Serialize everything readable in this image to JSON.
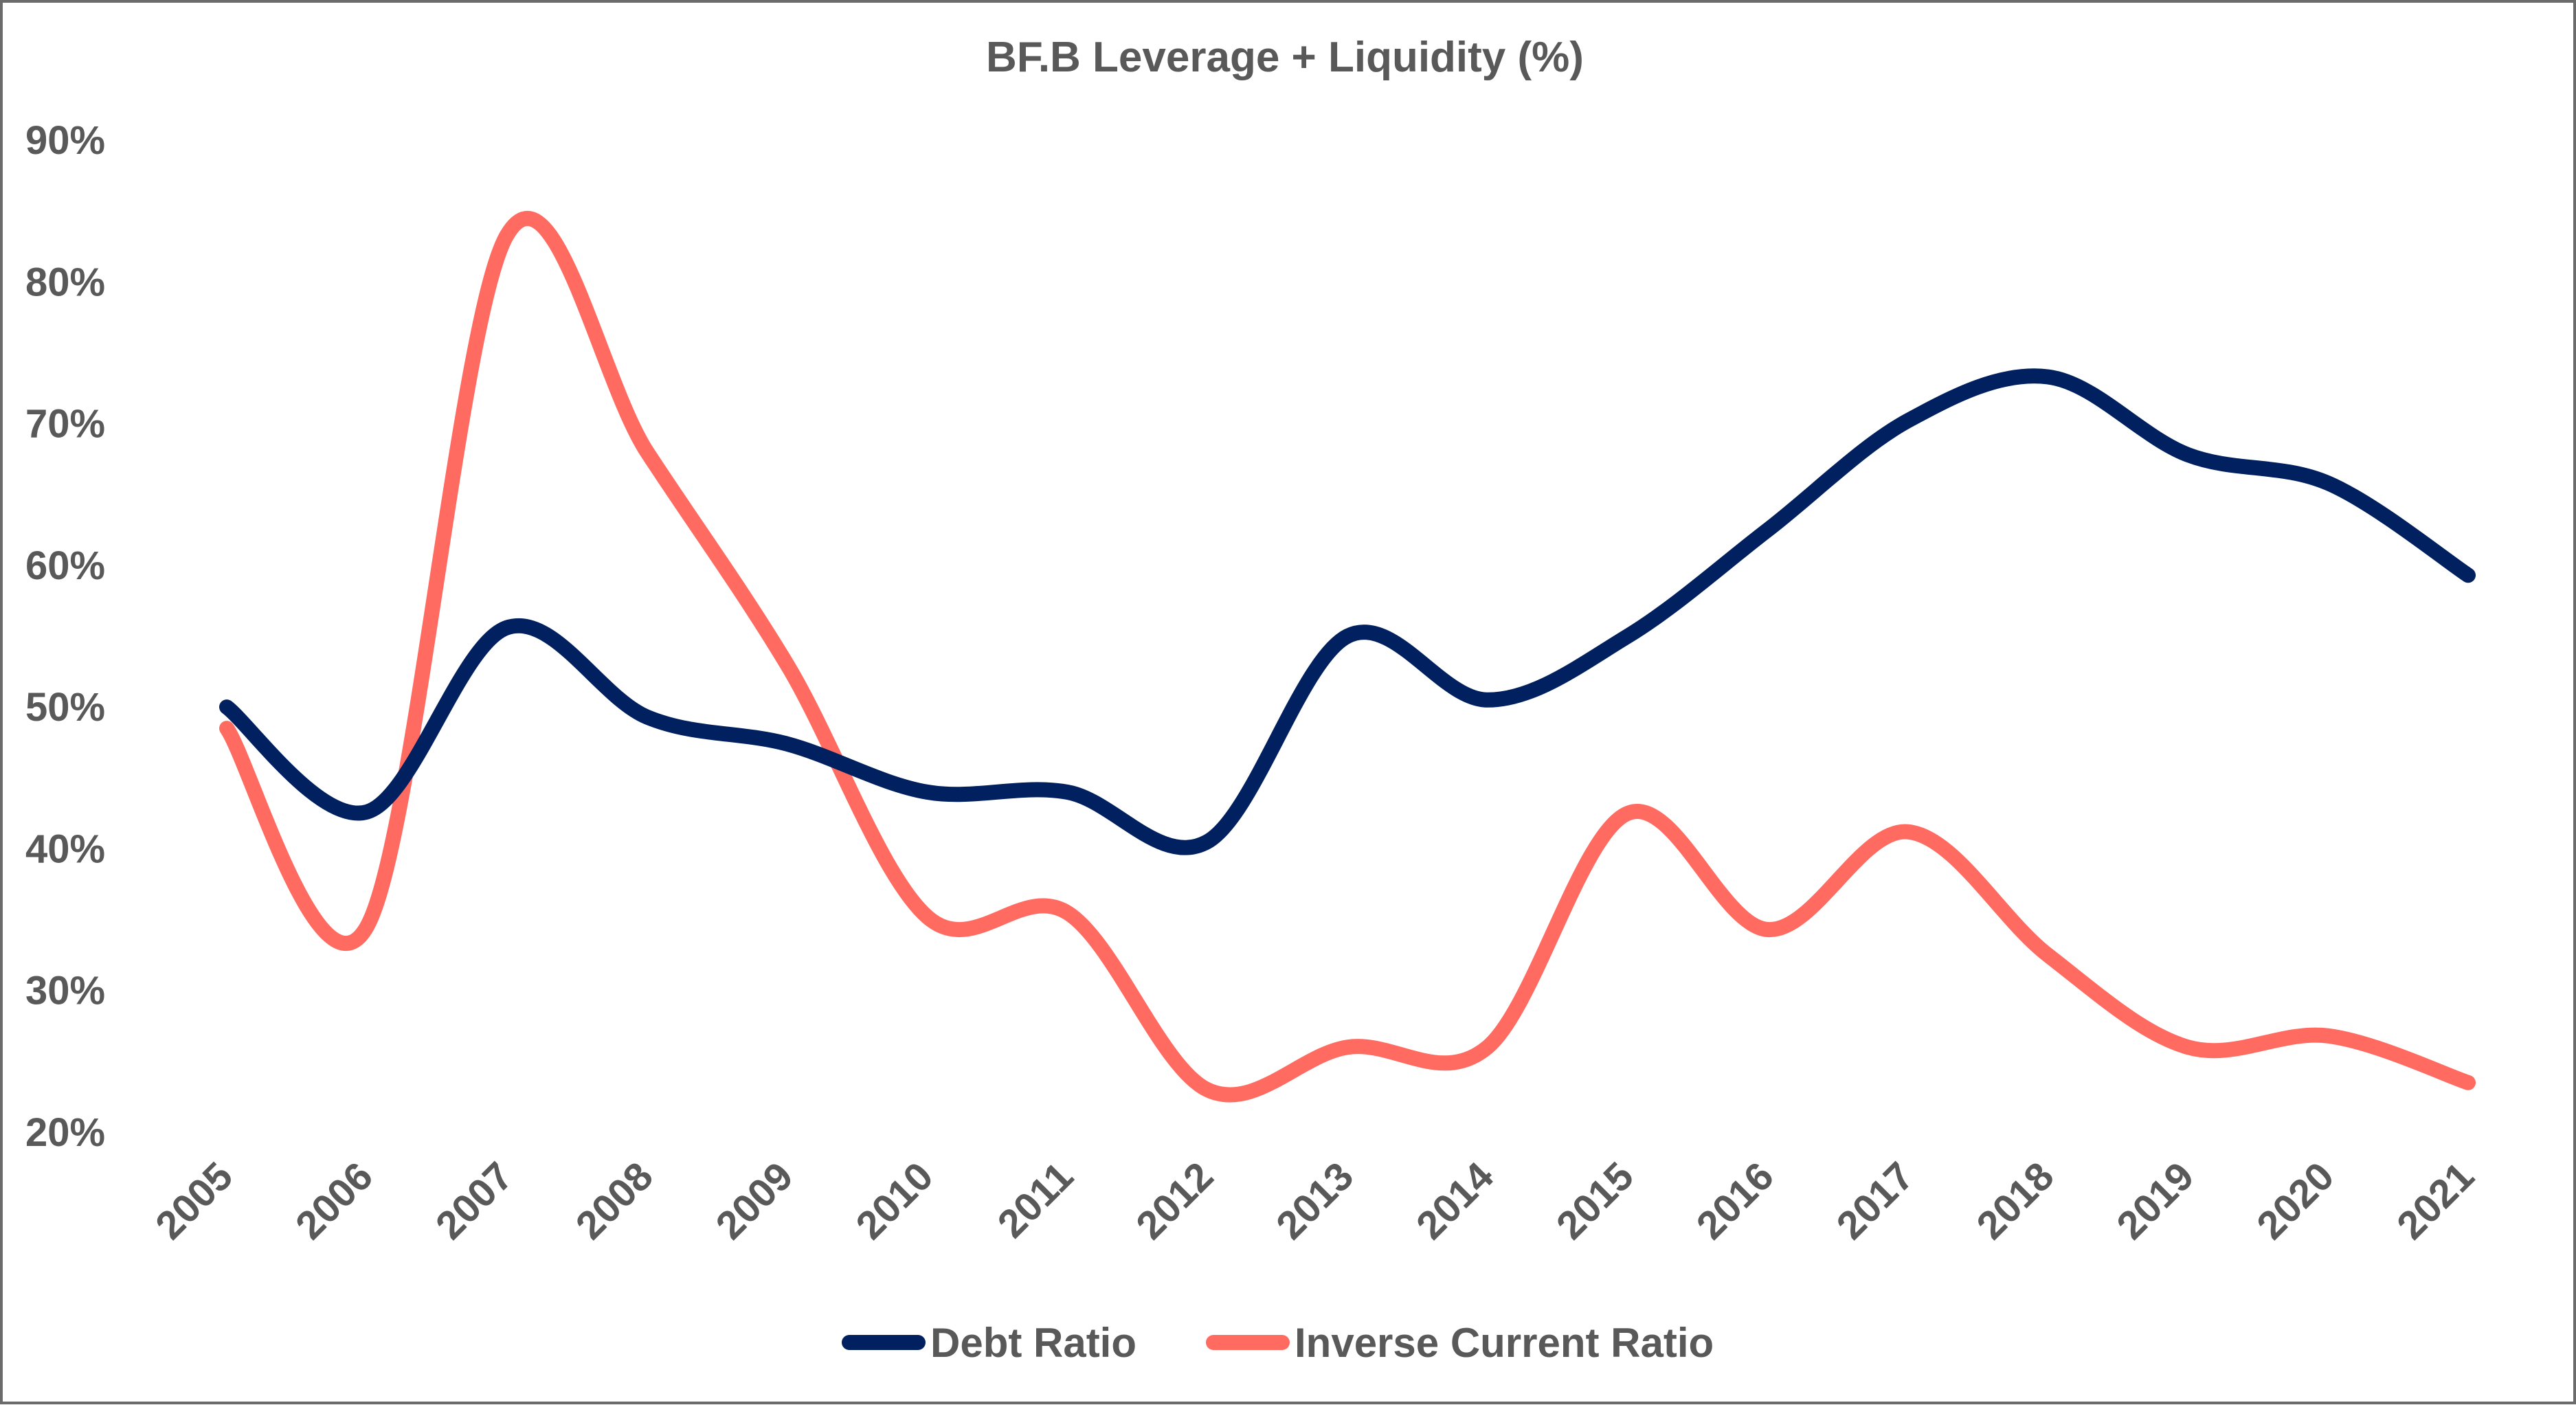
{
  "chart_data": {
    "type": "line",
    "title": "BF.B Leverage + Liquidity (%)",
    "xlabel": "",
    "ylabel": "",
    "categories": [
      "2005",
      "2006",
      "2007",
      "2008",
      "2009",
      "2010",
      "2011",
      "2012",
      "2013",
      "2014",
      "2015",
      "2016",
      "2017",
      "2018",
      "2019",
      "2020",
      "2021"
    ],
    "ylim": [
      20,
      90
    ],
    "yticks": [
      20,
      30,
      40,
      50,
      60,
      70,
      80,
      90
    ],
    "ytick_labels": [
      "20%",
      "30%",
      "40%",
      "50%",
      "60%",
      "70%",
      "80%",
      "90%"
    ],
    "grid": false,
    "legend": "bottom",
    "series": [
      {
        "name": "Debt Ratio",
        "color": "#002060",
        "values": [
          50,
          42.6,
          55.6,
          49.3,
          47.4,
          44.0,
          44.0,
          40.5,
          55.0,
          50.5,
          55.0,
          62.5,
          70.2,
          73.3,
          67.8,
          65.8,
          59.3
        ]
      },
      {
        "name": "Inverse Current Ratio",
        "color": "#FF6B61",
        "values": [
          48.5,
          34.5,
          83.3,
          68.0,
          53.0,
          35.2,
          35.5,
          23.0,
          26.0,
          26.0,
          42.5,
          34.3,
          41.2,
          32.5,
          26.0,
          26.8,
          23.5
        ]
      }
    ]
  }
}
